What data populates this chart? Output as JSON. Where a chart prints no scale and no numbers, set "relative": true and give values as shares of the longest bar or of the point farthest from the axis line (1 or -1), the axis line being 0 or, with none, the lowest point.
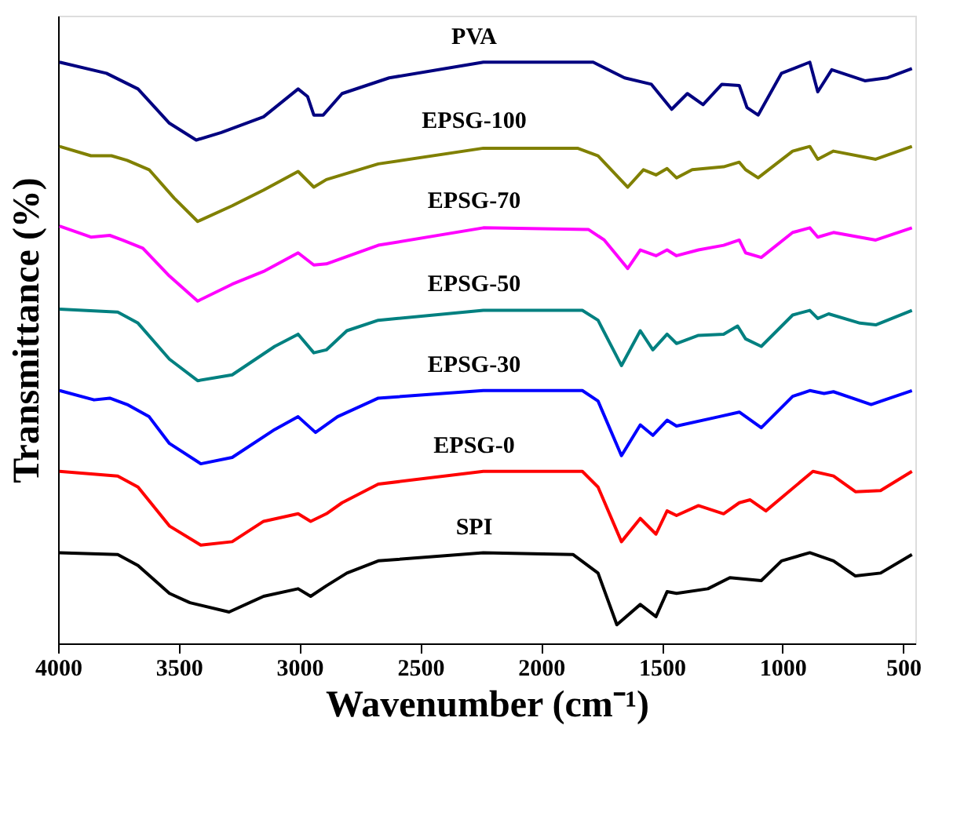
{
  "chart_data": {
    "type": "line",
    "relative": true,
    "xlabel": "Wavenumber (cm⁻¹)",
    "ylabel": "Transmittance (%)",
    "xlim": [
      4000,
      450
    ],
    "xticks": [
      4000,
      3500,
      3000,
      2500,
      2000,
      1500,
      1000,
      500
    ],
    "series": [
      {
        "name": "PVA",
        "color": "#000080",
        "x": [
          3994,
          3800,
          3669,
          3539,
          3428,
          3324,
          3149,
          3006,
          2967,
          2941,
          2902,
          2824,
          2629,
          2239,
          1784,
          1654,
          1543,
          1459,
          1394,
          1329,
          1251,
          1179,
          1147,
          1101,
          1004,
          887,
          854,
          796,
          659,
          568,
          464
        ],
        "values": [
          1.0,
          0.981,
          0.954,
          0.895,
          0.866,
          0.879,
          0.906,
          0.954,
          0.941,
          0.909,
          0.909,
          0.946,
          0.973,
          1.0,
          1.0,
          0.973,
          0.962,
          0.919,
          0.946,
          0.927,
          0.962,
          0.96,
          0.922,
          0.909,
          0.981,
          1.0,
          0.949,
          0.987,
          0.968,
          0.973,
          0.989
        ]
      },
      {
        "name": "EPSG-100",
        "color": "#808000",
        "x": [
          3994,
          3864,
          3779,
          3714,
          3623,
          3519,
          3422,
          3279,
          3149,
          3006,
          2941,
          2889,
          2674,
          2239,
          1849,
          1764,
          1641,
          1576,
          1524,
          1478,
          1439,
          1374,
          1244,
          1179,
          1153,
          1101,
          958,
          887,
          854,
          789,
          614,
          464
        ],
        "values": [
          0.855,
          0.839,
          0.839,
          0.831,
          0.815,
          0.766,
          0.726,
          0.753,
          0.78,
          0.812,
          0.785,
          0.798,
          0.825,
          0.852,
          0.852,
          0.839,
          0.785,
          0.815,
          0.806,
          0.817,
          0.801,
          0.815,
          0.82,
          0.828,
          0.815,
          0.801,
          0.847,
          0.855,
          0.833,
          0.847,
          0.833,
          0.855
        ]
      },
      {
        "name": "EPSG-70",
        "color": "#ff00ff",
        "x": [
          3994,
          3864,
          3786,
          3734,
          3649,
          3539,
          3422,
          3279,
          3149,
          3006,
          2941,
          2889,
          2674,
          2239,
          1803,
          1738,
          1641,
          1589,
          1524,
          1478,
          1439,
          1348,
          1244,
          1179,
          1153,
          1088,
          958,
          887,
          854,
          789,
          614,
          464
        ],
        "values": [
          0.718,
          0.699,
          0.702,
          0.694,
          0.68,
          0.632,
          0.589,
          0.618,
          0.64,
          0.672,
          0.651,
          0.653,
          0.685,
          0.715,
          0.712,
          0.694,
          0.645,
          0.677,
          0.667,
          0.677,
          0.667,
          0.677,
          0.685,
          0.694,
          0.672,
          0.664,
          0.707,
          0.715,
          0.699,
          0.707,
          0.694,
          0.715
        ]
      },
      {
        "name": "EPSG-50",
        "color": "#008080",
        "x": [
          3994,
          3753,
          3669,
          3539,
          3422,
          3279,
          3103,
          3006,
          2941,
          2889,
          2804,
          2674,
          2239,
          1829,
          1764,
          1667,
          1589,
          1537,
          1478,
          1439,
          1348,
          1244,
          1186,
          1153,
          1088,
          958,
          887,
          854,
          809,
          679,
          614,
          464
        ],
        "values": [
          0.575,
          0.57,
          0.551,
          0.489,
          0.452,
          0.462,
          0.511,
          0.532,
          0.5,
          0.505,
          0.538,
          0.556,
          0.573,
          0.573,
          0.556,
          0.478,
          0.538,
          0.505,
          0.532,
          0.516,
          0.53,
          0.532,
          0.546,
          0.524,
          0.511,
          0.565,
          0.573,
          0.559,
          0.567,
          0.551,
          0.548,
          0.573
        ]
      },
      {
        "name": "EPSG-30",
        "color": "#0000ff",
        "x": [
          3994,
          3851,
          3786,
          3714,
          3623,
          3539,
          3409,
          3279,
          3103,
          3006,
          2934,
          2843,
          2674,
          2239,
          1829,
          1764,
          1667,
          1589,
          1537,
          1478,
          1439,
          1264,
          1179,
          1088,
          958,
          887,
          828,
          789,
          633,
          464
        ],
        "values": [
          0.435,
          0.419,
          0.422,
          0.411,
          0.39,
          0.344,
          0.309,
          0.32,
          0.368,
          0.39,
          0.363,
          0.39,
          0.422,
          0.435,
          0.435,
          0.417,
          0.323,
          0.376,
          0.358,
          0.384,
          0.374,
          0.39,
          0.398,
          0.371,
          0.425,
          0.435,
          0.43,
          0.433,
          0.411,
          0.435
        ]
      },
      {
        "name": "EPSG-0",
        "color": "#ff0000",
        "x": [
          3994,
          3753,
          3669,
          3539,
          3409,
          3279,
          3149,
          3006,
          2954,
          2889,
          2824,
          2674,
          2239,
          1829,
          1764,
          1667,
          1589,
          1524,
          1478,
          1439,
          1348,
          1244,
          1179,
          1134,
          1069,
          874,
          789,
          698,
          594,
          464
        ],
        "values": [
          0.296,
          0.288,
          0.269,
          0.202,
          0.169,
          0.175,
          0.21,
          0.223,
          0.21,
          0.223,
          0.242,
          0.274,
          0.296,
          0.296,
          0.269,
          0.175,
          0.215,
          0.188,
          0.228,
          0.22,
          0.237,
          0.223,
          0.242,
          0.247,
          0.228,
          0.296,
          0.288,
          0.261,
          0.263,
          0.296
        ]
      },
      {
        "name": "SPI",
        "color": "#000000",
        "x": [
          3994,
          3753,
          3669,
          3539,
          3454,
          3292,
          3149,
          3006,
          2954,
          2889,
          2804,
          2674,
          2239,
          1868,
          1764,
          1686,
          1589,
          1524,
          1478,
          1439,
          1309,
          1218,
          1088,
          1004,
          887,
          789,
          698,
          594,
          464
        ],
        "values": [
          0.156,
          0.153,
          0.134,
          0.086,
          0.07,
          0.054,
          0.081,
          0.094,
          0.081,
          0.099,
          0.121,
          0.142,
          0.156,
          0.153,
          0.121,
          0.032,
          0.067,
          0.046,
          0.089,
          0.086,
          0.094,
          0.113,
          0.108,
          0.142,
          0.156,
          0.142,
          0.116,
          0.121,
          0.153
        ]
      }
    ]
  }
}
